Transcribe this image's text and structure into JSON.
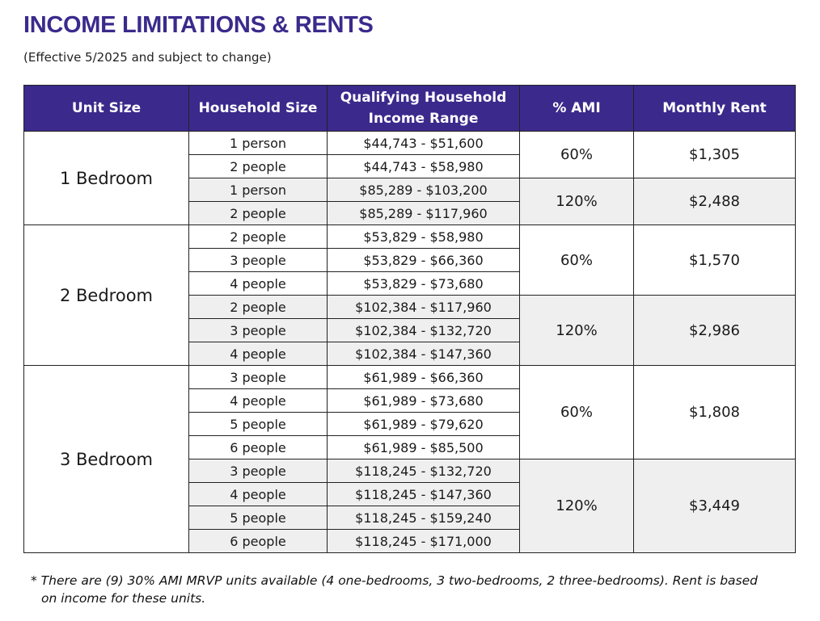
{
  "header": {
    "title": "INCOME LIMITATIONS & RENTS",
    "subtitle": "(Effective 5/2025 and subject to change)"
  },
  "table": {
    "columns": {
      "unit_size": "Unit Size",
      "household_size": "Household Size",
      "income_range_1": "Qualifying Household",
      "income_range_2": "Income Range",
      "ami": "% AMI",
      "rent": "Monthly Rent"
    },
    "units": [
      {
        "label": "1 Bedroom",
        "tiers": [
          {
            "ami": "60%",
            "rent": "$1,305",
            "rows": [
              {
                "household": "1 person",
                "range": "$44,743 - $51,600"
              },
              {
                "household": "2 people",
                "range": "$44,743 - $58,980"
              }
            ]
          },
          {
            "ami": "120%",
            "rent": "$2,488",
            "rows": [
              {
                "household": "1 person",
                "range": "$85,289 - $103,200"
              },
              {
                "household": "2 people",
                "range": "$85,289 - $117,960"
              }
            ]
          }
        ]
      },
      {
        "label": "2 Bedroom",
        "tiers": [
          {
            "ami": "60%",
            "rent": "$1,570",
            "rows": [
              {
                "household": "2 people",
                "range": "$53,829 - $58,980"
              },
              {
                "household": "3 people",
                "range": "$53,829 - $66,360"
              },
              {
                "household": "4 people",
                "range": "$53,829 - $73,680"
              }
            ]
          },
          {
            "ami": "120%",
            "rent": "$2,986",
            "rows": [
              {
                "household": "2 people",
                "range": "$102,384 - $117,960"
              },
              {
                "household": "3 people",
                "range": "$102,384 - $132,720"
              },
              {
                "household": "4 people",
                "range": "$102,384 - $147,360"
              }
            ]
          }
        ]
      },
      {
        "label": "3 Bedroom",
        "tiers": [
          {
            "ami": "60%",
            "rent": "$1,808",
            "rows": [
              {
                "household": "3 people",
                "range": "$61,989 - $66,360"
              },
              {
                "household": "4 people",
                "range": "$61,989 - $73,680"
              },
              {
                "household": "5 people",
                "range": "$61,989 - $79,620"
              },
              {
                "household": "6 people",
                "range": "$61,989 - $85,500"
              }
            ]
          },
          {
            "ami": "120%",
            "rent": "$3,449",
            "rows": [
              {
                "household": "3 people",
                "range": "$118,245 - $132,720"
              },
              {
                "household": "4 people",
                "range": "$118,245 - $147,360"
              },
              {
                "household": "5 people",
                "range": "$118,245 - $159,240"
              },
              {
                "household": "6 people",
                "range": "$118,245 - $171,000"
              }
            ]
          }
        ]
      }
    ]
  },
  "footnote": {
    "line1": "* There are (9) 30% AMI MRVP units available (4 one-bedrooms, 3 two-bedrooms, 2 three-bedrooms). Rent is based",
    "line2": "on income for these units."
  },
  "colors": {
    "header_bg": "#3b2a8c",
    "title": "#3b2a8c",
    "shaded_row": "#efefef"
  }
}
